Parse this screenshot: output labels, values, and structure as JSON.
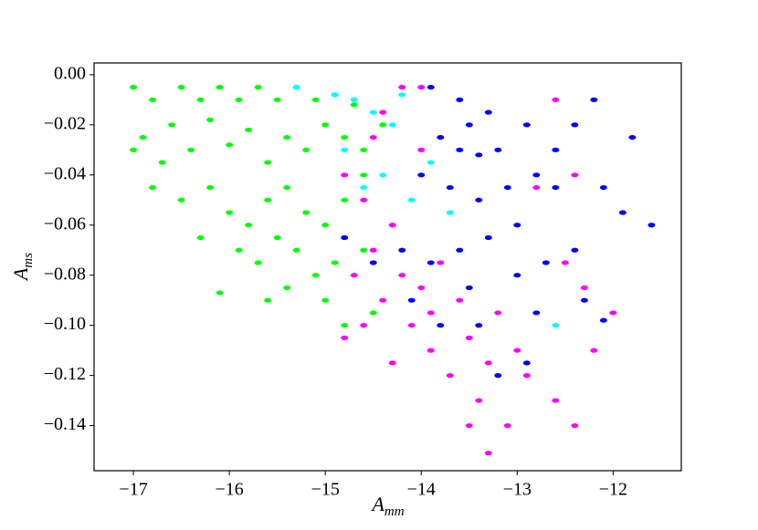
{
  "chart_data": {
    "type": "scatter",
    "x_label": {
      "text": "A",
      "subscript": "mm"
    },
    "y_label": {
      "text": "A",
      "subscript": "ms"
    },
    "xlim": [
      -17.41,
      -11.29
    ],
    "ylim": [
      -0.158,
      0.0047
    ],
    "xticks": [
      {
        "value": -17,
        "label": "−17"
      },
      {
        "value": -16,
        "label": "−16"
      },
      {
        "value": -15,
        "label": "−15"
      },
      {
        "value": -14,
        "label": "−14"
      },
      {
        "value": -13,
        "label": "−13"
      },
      {
        "value": -12,
        "label": "−12"
      }
    ],
    "yticks": [
      {
        "value": 0,
        "label": "0.00"
      },
      {
        "value": -0.02,
        "label": "−0.02"
      },
      {
        "value": -0.04,
        "label": "−0.04"
      },
      {
        "value": -0.06,
        "label": "−0.06"
      },
      {
        "value": -0.08,
        "label": "−0.08"
      },
      {
        "value": -0.1,
        "label": "−0.10"
      },
      {
        "value": -0.12,
        "label": "−0.12"
      },
      {
        "value": -0.14,
        "label": "−0.14"
      }
    ],
    "series": [
      {
        "color": "#00ff00",
        "x": [
          -17.0,
          -16.8,
          -16.5,
          -16.3,
          -16.1,
          -15.9,
          -15.7,
          -15.5,
          -15.3,
          -15.1,
          -14.9,
          -14.7,
          -16.9,
          -16.7,
          -16.6,
          -16.4,
          -16.2,
          -16.0,
          -15.8,
          -15.6,
          -15.4,
          -15.2,
          -15.0,
          -14.8,
          -14.6,
          -14.4,
          -16.8,
          -16.5,
          -16.2,
          -16.0,
          -15.8,
          -15.6,
          -15.4,
          -15.2,
          -15.0,
          -14.8,
          -14.6,
          -15.9,
          -15.7,
          -15.5,
          -15.3,
          -15.1,
          -14.9,
          -16.1,
          -15.4,
          -15.0,
          -14.8,
          -14.5,
          -17.0,
          -16.3,
          -15.6,
          -14.6
        ],
        "y": [
          -0.005,
          -0.01,
          -0.005,
          -0.01,
          -0.005,
          -0.01,
          -0.005,
          -0.01,
          -0.005,
          -0.01,
          -0.008,
          -0.012,
          -0.025,
          -0.035,
          -0.02,
          -0.03,
          -0.018,
          -0.028,
          -0.022,
          -0.035,
          -0.025,
          -0.03,
          -0.02,
          -0.025,
          -0.03,
          -0.02,
          -0.045,
          -0.05,
          -0.045,
          -0.055,
          -0.06,
          -0.05,
          -0.045,
          -0.055,
          -0.06,
          -0.05,
          -0.04,
          -0.07,
          -0.075,
          -0.065,
          -0.07,
          -0.08,
          -0.075,
          -0.087,
          -0.085,
          -0.09,
          -0.1,
          -0.095,
          -0.03,
          -0.065,
          -0.09,
          -0.07
        ]
      },
      {
        "color": "#00ffff",
        "x": [
          -15.3,
          -14.9,
          -14.7,
          -14.5,
          -14.3,
          -14.8,
          -14.4,
          -14.1,
          -13.9,
          -14.3,
          -13.7,
          -14.6,
          -12.6,
          -14.2
        ],
        "y": [
          -0.005,
          -0.008,
          -0.01,
          -0.015,
          -0.02,
          -0.03,
          -0.04,
          -0.05,
          -0.035,
          -0.06,
          -0.055,
          -0.045,
          -0.1,
          -0.008
        ]
      },
      {
        "color": "#ff00ff",
        "x": [
          -14.2,
          -14.5,
          -14.6,
          -14.3,
          -14.5,
          -14.2,
          -14.0,
          -14.4,
          -13.9,
          -14.6,
          -14.8,
          -14.1,
          -13.8,
          -13.6,
          -13.5,
          -13.3,
          -13.7,
          -13.2,
          -13.0,
          -12.9,
          -13.4,
          -13.1,
          -13.3,
          -12.6,
          -12.4,
          -12.2,
          -12.5,
          -12.3,
          -12.4,
          -12.6,
          -12.8,
          -14.8,
          -14.0,
          -14.7,
          -13.9,
          -14.3,
          -13.5,
          -12.0,
          -14.4,
          -14.0
        ],
        "y": [
          -0.005,
          -0.025,
          -0.05,
          -0.06,
          -0.07,
          -0.08,
          -0.085,
          -0.09,
          -0.095,
          -0.1,
          -0.105,
          -0.1,
          -0.075,
          -0.09,
          -0.105,
          -0.115,
          -0.12,
          -0.095,
          -0.11,
          -0.12,
          -0.13,
          -0.14,
          -0.151,
          -0.13,
          -0.14,
          -0.11,
          -0.075,
          -0.085,
          -0.04,
          -0.01,
          -0.045,
          -0.04,
          -0.03,
          -0.08,
          -0.11,
          -0.115,
          -0.14,
          -0.095,
          -0.015,
          -0.005
        ]
      },
      {
        "color": "#0000ff",
        "x": [
          -13.9,
          -13.6,
          -13.3,
          -13.5,
          -13.8,
          -13.6,
          -13.4,
          -13.2,
          -14.0,
          -13.7,
          -13.4,
          -13.1,
          -12.8,
          -12.6,
          -12.4,
          -12.2,
          -12.9,
          -13.0,
          -13.3,
          -13.6,
          -13.9,
          -14.2,
          -14.5,
          -14.8,
          -14.1,
          -13.8,
          -13.5,
          -13.0,
          -12.7,
          -12.4,
          -12.1,
          -11.9,
          -11.6,
          -11.8,
          -12.3,
          -12.1,
          -12.8,
          -13.4,
          -12.9,
          -13.2,
          -12.6
        ],
        "y": [
          -0.005,
          -0.01,
          -0.015,
          -0.02,
          -0.025,
          -0.03,
          -0.032,
          -0.03,
          -0.04,
          -0.045,
          -0.05,
          -0.045,
          -0.04,
          -0.03,
          -0.02,
          -0.01,
          -0.02,
          -0.06,
          -0.065,
          -0.07,
          -0.075,
          -0.07,
          -0.075,
          -0.065,
          -0.09,
          -0.1,
          -0.085,
          -0.08,
          -0.075,
          -0.07,
          -0.045,
          -0.055,
          -0.06,
          -0.025,
          -0.09,
          -0.098,
          -0.095,
          -0.1,
          -0.115,
          -0.12,
          -0.045
        ]
      }
    ]
  }
}
